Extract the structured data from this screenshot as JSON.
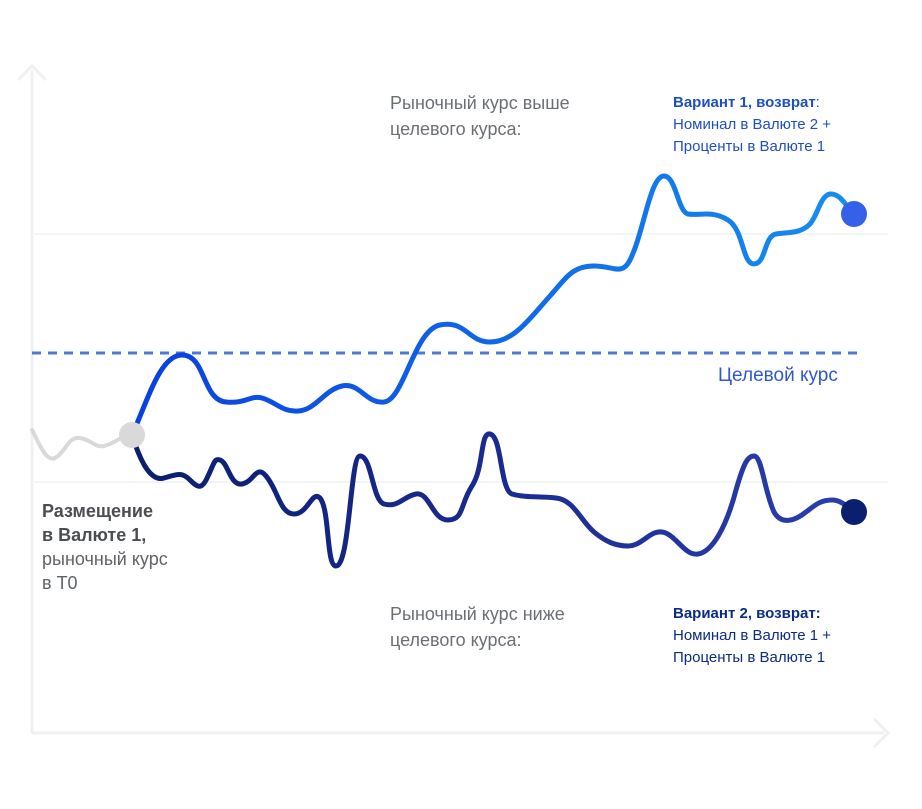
{
  "labels": {
    "above_line1": "Рыночный курс выше",
    "above_line2": "целевого курса:",
    "below_line1": "Рыночный курс ниже",
    "below_line2": "целевого курса:",
    "target_rate": "Целевой курс",
    "placement_bold_1": "Размещение",
    "placement_bold_2": "в Валюте 1,",
    "placement_3": "рыночный курс",
    "placement_4": "в Т0"
  },
  "variant1": {
    "heading": "Вариант 1, возврат",
    "heading_suffix": ":",
    "line1": "Номинал в Валюте 2 +",
    "line2": "Проценты в Валюте 1"
  },
  "variant2": {
    "heading": "Вариант 2, возврат:",
    "line1": "Номинал в Валюте 1 +",
    "line2": "Проценты в Валюте 1"
  },
  "colors": {
    "axis": "#eef0f3",
    "target_dash": "#4f78d6",
    "history": "#d9d9d9",
    "upper_path_start": "#0a3fe0",
    "upper_path_end": "#168ef0",
    "lower_path_start": "#0a1f6e",
    "lower_path_end": "#2a3fae",
    "upper_dot": "#3560e8",
    "lower_dot": "#0a1f6e",
    "start_dot": "#d9d9d9"
  }
}
